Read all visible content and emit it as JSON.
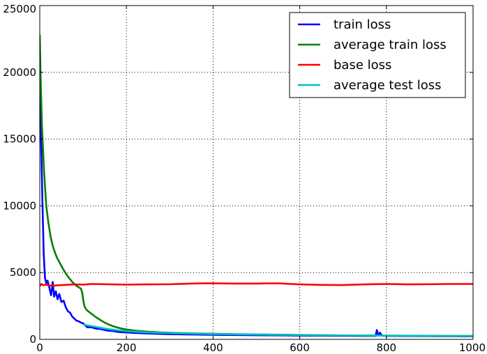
{
  "chart_data": {
    "type": "line",
    "title": "",
    "xlabel": "",
    "ylabel": "",
    "xlim": [
      0,
      1000
    ],
    "ylim": [
      0,
      25000
    ],
    "x_ticks": [
      0,
      200,
      400,
      600,
      800,
      1000
    ],
    "y_ticks": [
      0,
      5000,
      10000,
      15000,
      20000,
      25000
    ],
    "grid": true,
    "legend_position": "top-right",
    "series": [
      {
        "name": "train loss",
        "color": "#0000ff",
        "points": [
          [
            0,
            19000
          ],
          [
            3,
            15000
          ],
          [
            6,
            10500
          ],
          [
            9,
            6500
          ],
          [
            12,
            4600
          ],
          [
            15,
            4200
          ],
          [
            18,
            4400
          ],
          [
            22,
            3900
          ],
          [
            26,
            3300
          ],
          [
            30,
            4300
          ],
          [
            33,
            3200
          ],
          [
            37,
            3600
          ],
          [
            41,
            3000
          ],
          [
            45,
            3400
          ],
          [
            50,
            2800
          ],
          [
            55,
            2900
          ],
          [
            60,
            2400
          ],
          [
            65,
            2100
          ],
          [
            70,
            2000
          ],
          [
            75,
            1700
          ],
          [
            80,
            1550
          ],
          [
            85,
            1400
          ],
          [
            90,
            1350
          ],
          [
            95,
            1250
          ],
          [
            100,
            1200
          ],
          [
            110,
            900
          ],
          [
            120,
            900
          ],
          [
            130,
            800
          ],
          [
            140,
            780
          ],
          [
            150,
            700
          ],
          [
            160,
            640
          ],
          [
            170,
            620
          ],
          [
            180,
            560
          ],
          [
            190,
            540
          ],
          [
            200,
            520
          ],
          [
            220,
            480
          ],
          [
            240,
            450
          ],
          [
            260,
            430
          ],
          [
            280,
            410
          ],
          [
            300,
            390
          ],
          [
            320,
            380
          ],
          [
            340,
            370
          ],
          [
            360,
            360
          ],
          [
            380,
            350
          ],
          [
            400,
            340
          ],
          [
            420,
            330
          ],
          [
            440,
            330
          ],
          [
            460,
            320
          ],
          [
            480,
            315
          ],
          [
            500,
            310
          ],
          [
            520,
            300
          ],
          [
            540,
            300
          ],
          [
            560,
            295
          ],
          [
            580,
            290
          ],
          [
            600,
            285
          ],
          [
            620,
            280
          ],
          [
            640,
            280
          ],
          [
            660,
            275
          ],
          [
            680,
            270
          ],
          [
            700,
            270
          ],
          [
            720,
            265
          ],
          [
            740,
            260
          ],
          [
            760,
            260
          ],
          [
            775,
            255
          ],
          [
            778,
            700
          ],
          [
            781,
            300
          ],
          [
            785,
            500
          ],
          [
            790,
            280
          ],
          [
            800,
            260
          ],
          [
            820,
            255
          ],
          [
            840,
            250
          ],
          [
            860,
            248
          ],
          [
            880,
            245
          ],
          [
            900,
            242
          ],
          [
            920,
            240
          ],
          [
            940,
            238
          ],
          [
            960,
            235
          ],
          [
            980,
            232
          ],
          [
            1000,
            230
          ]
        ]
      },
      {
        "name": "average train loss",
        "color": "#008000",
        "points": [
          [
            0,
            22800
          ],
          [
            2,
            19500
          ],
          [
            5,
            16000
          ],
          [
            10,
            12500
          ],
          [
            15,
            10000
          ],
          [
            20,
            8700
          ],
          [
            25,
            7700
          ],
          [
            30,
            7000
          ],
          [
            35,
            6500
          ],
          [
            40,
            6100
          ],
          [
            45,
            5800
          ],
          [
            50,
            5500
          ],
          [
            55,
            5200
          ],
          [
            60,
            4950
          ],
          [
            65,
            4700
          ],
          [
            70,
            4500
          ],
          [
            75,
            4300
          ],
          [
            80,
            4150
          ],
          [
            85,
            4000
          ],
          [
            90,
            3900
          ],
          [
            95,
            3800
          ],
          [
            98,
            3500
          ],
          [
            100,
            3000
          ],
          [
            103,
            2500
          ],
          [
            106,
            2300
          ],
          [
            110,
            2150
          ],
          [
            120,
            1900
          ],
          [
            130,
            1650
          ],
          [
            140,
            1450
          ],
          [
            150,
            1250
          ],
          [
            160,
            1100
          ],
          [
            170,
            980
          ],
          [
            180,
            880
          ],
          [
            190,
            800
          ],
          [
            200,
            740
          ],
          [
            220,
            650
          ],
          [
            240,
            600
          ],
          [
            260,
            560
          ],
          [
            280,
            520
          ],
          [
            300,
            490
          ],
          [
            350,
            450
          ],
          [
            400,
            420
          ],
          [
            450,
            390
          ],
          [
            500,
            370
          ],
          [
            550,
            350
          ],
          [
            600,
            330
          ],
          [
            650,
            310
          ],
          [
            700,
            300
          ],
          [
            750,
            290
          ],
          [
            800,
            280
          ],
          [
            850,
            270
          ],
          [
            900,
            260
          ],
          [
            950,
            255
          ],
          [
            1000,
            250
          ]
        ]
      },
      {
        "name": "base loss",
        "color": "#ff0000",
        "points": [
          [
            0,
            4000
          ],
          [
            4,
            4150
          ],
          [
            8,
            4050
          ],
          [
            12,
            4100
          ],
          [
            20,
            4050
          ],
          [
            30,
            4000
          ],
          [
            40,
            4050
          ],
          [
            60,
            4080
          ],
          [
            80,
            4120
          ],
          [
            100,
            4100
          ],
          [
            120,
            4150
          ],
          [
            150,
            4130
          ],
          [
            200,
            4100
          ],
          [
            250,
            4120
          ],
          [
            300,
            4130
          ],
          [
            350,
            4180
          ],
          [
            380,
            4200
          ],
          [
            400,
            4200
          ],
          [
            450,
            4180
          ],
          [
            500,
            4180
          ],
          [
            550,
            4200
          ],
          [
            580,
            4150
          ],
          [
            600,
            4120
          ],
          [
            650,
            4080
          ],
          [
            700,
            4070
          ],
          [
            750,
            4120
          ],
          [
            800,
            4150
          ],
          [
            850,
            4120
          ],
          [
            900,
            4130
          ],
          [
            950,
            4150
          ],
          [
            1000,
            4150
          ]
        ]
      },
      {
        "name": "average test loss",
        "color": "#00bfbf",
        "points": [
          [
            100,
            1100
          ],
          [
            110,
            1050
          ],
          [
            120,
            990
          ],
          [
            130,
            930
          ],
          [
            140,
            870
          ],
          [
            150,
            810
          ],
          [
            160,
            760
          ],
          [
            170,
            720
          ],
          [
            180,
            680
          ],
          [
            190,
            650
          ],
          [
            200,
            620
          ],
          [
            220,
            570
          ],
          [
            240,
            540
          ],
          [
            260,
            510
          ],
          [
            280,
            490
          ],
          [
            300,
            470
          ],
          [
            350,
            430
          ],
          [
            400,
            400
          ],
          [
            450,
            380
          ],
          [
            500,
            360
          ],
          [
            550,
            340
          ],
          [
            600,
            320
          ],
          [
            650,
            310
          ],
          [
            700,
            300
          ],
          [
            750,
            290
          ],
          [
            800,
            280
          ],
          [
            850,
            275
          ],
          [
            900,
            270
          ],
          [
            950,
            265
          ],
          [
            1000,
            260
          ]
        ]
      }
    ]
  }
}
